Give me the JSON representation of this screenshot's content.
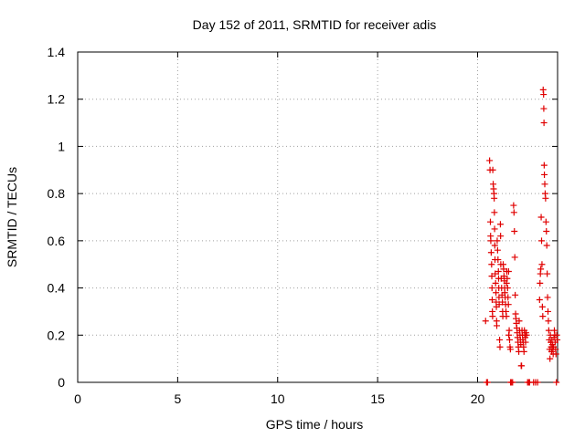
{
  "chart_data": {
    "type": "scatter",
    "title": "Day 152 of 2011, SRMTID for receiver adis",
    "xlabel": "GPS time / hours",
    "ylabel": "SRMTID / TECUs",
    "xlim": [
      0,
      24
    ],
    "ylim": [
      0,
      1.4
    ],
    "xticks": [
      0,
      5,
      10,
      15,
      20
    ],
    "xtick_labels": [
      "0",
      "5",
      "10",
      "15",
      "20"
    ],
    "yticks": [
      0,
      0.2,
      0.4,
      0.6,
      0.8,
      1.0,
      1.2,
      1.4
    ],
    "ytick_labels": [
      "0",
      "0.2",
      "0.4",
      "0.6",
      "0.8",
      "1",
      "1.2",
      "1.4"
    ],
    "grid": true,
    "marker": "plus",
    "color": "#e00000",
    "points": [
      [
        20.4,
        0.26
      ],
      [
        20.45,
        0.0
      ],
      [
        20.5,
        0.0
      ],
      [
        20.6,
        0.94
      ],
      [
        20.62,
        0.9
      ],
      [
        20.64,
        0.68
      ],
      [
        20.65,
        0.62
      ],
      [
        20.66,
        0.6
      ],
      [
        20.68,
        0.55
      ],
      [
        20.7,
        0.5
      ],
      [
        20.71,
        0.45
      ],
      [
        20.72,
        0.4
      ],
      [
        20.73,
        0.35
      ],
      [
        20.74,
        0.3
      ],
      [
        20.75,
        0.28
      ],
      [
        20.76,
        0.9
      ],
      [
        20.78,
        0.84
      ],
      [
        20.8,
        0.82
      ],
      [
        20.82,
        0.8
      ],
      [
        20.83,
        0.78
      ],
      [
        20.84,
        0.72
      ],
      [
        20.85,
        0.65
      ],
      [
        20.86,
        0.58
      ],
      [
        20.87,
        0.52
      ],
      [
        20.88,
        0.46
      ],
      [
        20.9,
        0.42
      ],
      [
        20.92,
        0.38
      ],
      [
        20.93,
        0.34
      ],
      [
        20.94,
        0.32
      ],
      [
        20.95,
        0.26
      ],
      [
        20.96,
        0.24
      ],
      [
        20.98,
        0.6
      ],
      [
        21.0,
        0.56
      ],
      [
        21.02,
        0.52
      ],
      [
        21.04,
        0.47
      ],
      [
        21.05,
        0.44
      ],
      [
        21.06,
        0.4
      ],
      [
        21.07,
        0.36
      ],
      [
        21.08,
        0.33
      ],
      [
        21.1,
        0.18
      ],
      [
        21.12,
        0.15
      ],
      [
        21.14,
        0.67
      ],
      [
        21.15,
        0.62
      ],
      [
        21.16,
        0.5
      ],
      [
        21.18,
        0.44
      ],
      [
        21.2,
        0.4
      ],
      [
        21.22,
        0.37
      ],
      [
        21.24,
        0.34
      ],
      [
        21.25,
        0.3
      ],
      [
        21.26,
        0.28
      ],
      [
        21.28,
        0.5
      ],
      [
        21.3,
        0.48
      ],
      [
        21.32,
        0.45
      ],
      [
        21.34,
        0.43
      ],
      [
        21.35,
        0.4
      ],
      [
        21.36,
        0.38
      ],
      [
        21.38,
        0.36
      ],
      [
        21.4,
        0.33
      ],
      [
        21.42,
        0.3
      ],
      [
        21.44,
        0.28
      ],
      [
        21.45,
        0.42
      ],
      [
        21.46,
        0.47
      ],
      [
        21.48,
        0.44
      ],
      [
        21.5,
        0.4
      ],
      [
        21.52,
        0.36
      ],
      [
        21.54,
        0.33
      ],
      [
        21.55,
        0.47
      ],
      [
        21.56,
        0.2
      ],
      [
        21.58,
        0.22
      ],
      [
        21.6,
        0.18
      ],
      [
        21.62,
        0.15
      ],
      [
        21.64,
        0.14
      ],
      [
        21.65,
        0.0
      ],
      [
        21.7,
        0.0
      ],
      [
        21.75,
        0.0
      ],
      [
        21.8,
        0.75
      ],
      [
        21.82,
        0.72
      ],
      [
        21.84,
        0.64
      ],
      [
        21.86,
        0.53
      ],
      [
        21.88,
        0.37
      ],
      [
        21.9,
        0.29
      ],
      [
        21.92,
        0.27
      ],
      [
        21.94,
        0.25
      ],
      [
        21.96,
        0.23
      ],
      [
        21.98,
        0.21
      ],
      [
        22.0,
        0.19
      ],
      [
        22.02,
        0.17
      ],
      [
        22.04,
        0.15
      ],
      [
        22.06,
        0.13
      ],
      [
        22.08,
        0.26
      ],
      [
        22.1,
        0.22
      ],
      [
        22.12,
        0.2
      ],
      [
        22.14,
        0.18
      ],
      [
        22.16,
        0.16
      ],
      [
        22.18,
        0.07
      ],
      [
        22.2,
        0.07
      ],
      [
        22.22,
        0.22
      ],
      [
        22.24,
        0.2
      ],
      [
        22.26,
        0.18
      ],
      [
        22.28,
        0.17
      ],
      [
        22.3,
        0.15
      ],
      [
        22.32,
        0.13
      ],
      [
        22.34,
        0.22
      ],
      [
        22.36,
        0.2
      ],
      [
        22.38,
        0.19
      ],
      [
        22.4,
        0.17
      ],
      [
        22.42,
        0.21
      ],
      [
        22.45,
        0.2
      ],
      [
        22.5,
        0.0
      ],
      [
        22.55,
        0.0
      ],
      [
        22.6,
        0.0
      ],
      [
        22.8,
        0.0
      ],
      [
        22.9,
        0.0
      ],
      [
        23.0,
        0.0
      ],
      [
        23.1,
        0.35
      ],
      [
        23.12,
        0.42
      ],
      [
        23.14,
        0.46
      ],
      [
        23.16,
        0.48
      ],
      [
        23.18,
        0.7
      ],
      [
        23.2,
        0.6
      ],
      [
        23.22,
        0.5
      ],
      [
        23.24,
        0.32
      ],
      [
        23.26,
        0.28
      ],
      [
        23.28,
        1.24
      ],
      [
        23.3,
        1.22
      ],
      [
        23.31,
        1.16
      ],
      [
        23.32,
        1.1
      ],
      [
        23.33,
        0.92
      ],
      [
        23.34,
        0.88
      ],
      [
        23.36,
        0.84
      ],
      [
        23.38,
        0.8
      ],
      [
        23.4,
        0.78
      ],
      [
        23.42,
        0.68
      ],
      [
        23.44,
        0.64
      ],
      [
        23.46,
        0.58
      ],
      [
        23.48,
        0.46
      ],
      [
        23.5,
        0.36
      ],
      [
        23.52,
        0.3
      ],
      [
        23.54,
        0.26
      ],
      [
        23.56,
        0.22
      ],
      [
        23.58,
        0.18
      ],
      [
        23.6,
        0.14
      ],
      [
        23.62,
        0.1
      ],
      [
        23.64,
        0.2
      ],
      [
        23.66,
        0.17
      ],
      [
        23.68,
        0.15
      ],
      [
        23.7,
        0.13
      ],
      [
        23.72,
        0.18
      ],
      [
        23.74,
        0.16
      ],
      [
        23.76,
        0.14
      ],
      [
        23.78,
        0.12
      ],
      [
        23.8,
        0.15
      ],
      [
        23.82,
        0.19
      ],
      [
        23.84,
        0.22
      ],
      [
        23.86,
        0.2
      ],
      [
        23.88,
        0.17
      ],
      [
        23.9,
        0.14
      ],
      [
        23.92,
        0.12
      ],
      [
        23.94,
        0.0
      ],
      [
        23.96,
        0.2
      ],
      [
        23.98,
        0.18
      ]
    ]
  }
}
